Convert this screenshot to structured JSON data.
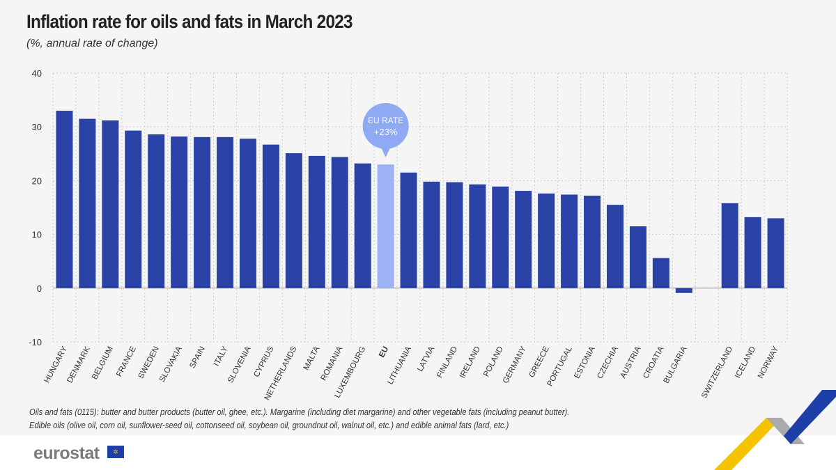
{
  "title": "Inflation rate for oils and fats in March 2023",
  "subtitle": "(%, annual rate of change)",
  "notes": [
    "Oils and fats (0115): butter and butter products (butter oil, ghee, etc.). Margarine (including diet margarine) and other vegetable fats (including peanut butter).",
    "Edible oils (olive oil, corn oil, sunflower-seed oil, cottonseed oil, soybean oil, groundnut oil, walnut oil, etc.) and edible animal fats (lard, etc.)"
  ],
  "logo": "eurostat",
  "colors": {
    "bar": "#2a42a6",
    "eu_bar": "#9db3f5",
    "callout": "#8fa9f2",
    "background": "#f5f5f5"
  },
  "chart_data": {
    "type": "bar",
    "title": "Inflation rate for oils and fats in March 2023",
    "ylabel": "(%, annual rate of change)",
    "ylim": [
      -10,
      40
    ],
    "yticks": [
      -10,
      0,
      10,
      20,
      30,
      40
    ],
    "grid": true,
    "categories": [
      "HUNGARY",
      "DENMARK",
      "BELGIUM",
      "FRANCE",
      "SWEDEN",
      "SLOVAKIA",
      "SPAIN",
      "ITALY",
      "SLOVENIA",
      "CYPRUS",
      "NETHERLANDS",
      "MALTA",
      "ROMANIA",
      "LUXEMBOURG",
      "EU",
      "LITHUANIA",
      "LATVIA",
      "FINLAND",
      "IRELAND",
      "POLAND",
      "GERMANY",
      "GREECE",
      "PORTUGAL",
      "ESTONIA",
      "CZECHIA",
      "AUSTRIA",
      "CROATIA",
      "BULGARIA",
      "",
      "SWITZERLAND",
      "ICELAND",
      "NORWAY"
    ],
    "values": [
      33.0,
      31.5,
      31.2,
      29.3,
      28.6,
      28.2,
      28.1,
      28.1,
      27.8,
      26.7,
      25.1,
      24.6,
      24.4,
      23.2,
      23.0,
      21.5,
      19.8,
      19.7,
      19.3,
      18.9,
      18.1,
      17.6,
      17.4,
      17.2,
      15.5,
      11.5,
      5.6,
      -0.9,
      null,
      15.8,
      13.2,
      13.0
    ],
    "highlight": "EU",
    "annotation": {
      "line1": "EU RATE",
      "line2": "+23%"
    }
  }
}
